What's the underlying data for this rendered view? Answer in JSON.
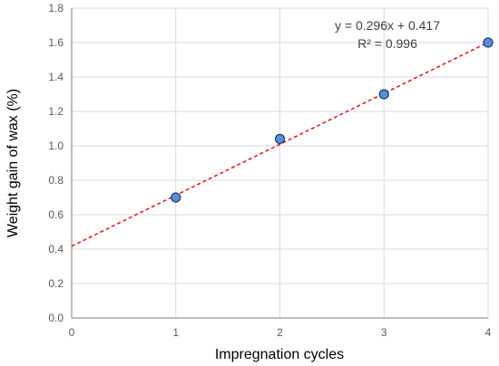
{
  "chart_data": {
    "type": "scatter",
    "x": [
      1,
      2,
      3,
      4
    ],
    "y": [
      0.7,
      1.04,
      1.3,
      1.6
    ],
    "xlabel": "Impregnation cycles",
    "ylabel": "Weight gain of wax (%)",
    "xlim": [
      0,
      4
    ],
    "ylim": [
      0,
      1.8
    ],
    "xticks": [
      "0",
      "1",
      "2",
      "3",
      "4"
    ],
    "yticks": [
      "0.0",
      "0.2",
      "0.4",
      "0.6",
      "0.8",
      "1.0",
      "1.2",
      "1.4",
      "1.6",
      "1.8"
    ],
    "grid": true,
    "trendline": {
      "type": "linear",
      "slope": 0.296,
      "intercept": 0.417,
      "equation": "y = 0.296x + 0.417",
      "r_squared": "R² = 0.996",
      "color": "#e02020",
      "style": "dashed"
    },
    "marker_fill": "#5b8dd6",
    "marker_edge": "#1f3f7a",
    "axis_color": "#7f7f7f",
    "grid_color": "#d9d9d9"
  }
}
